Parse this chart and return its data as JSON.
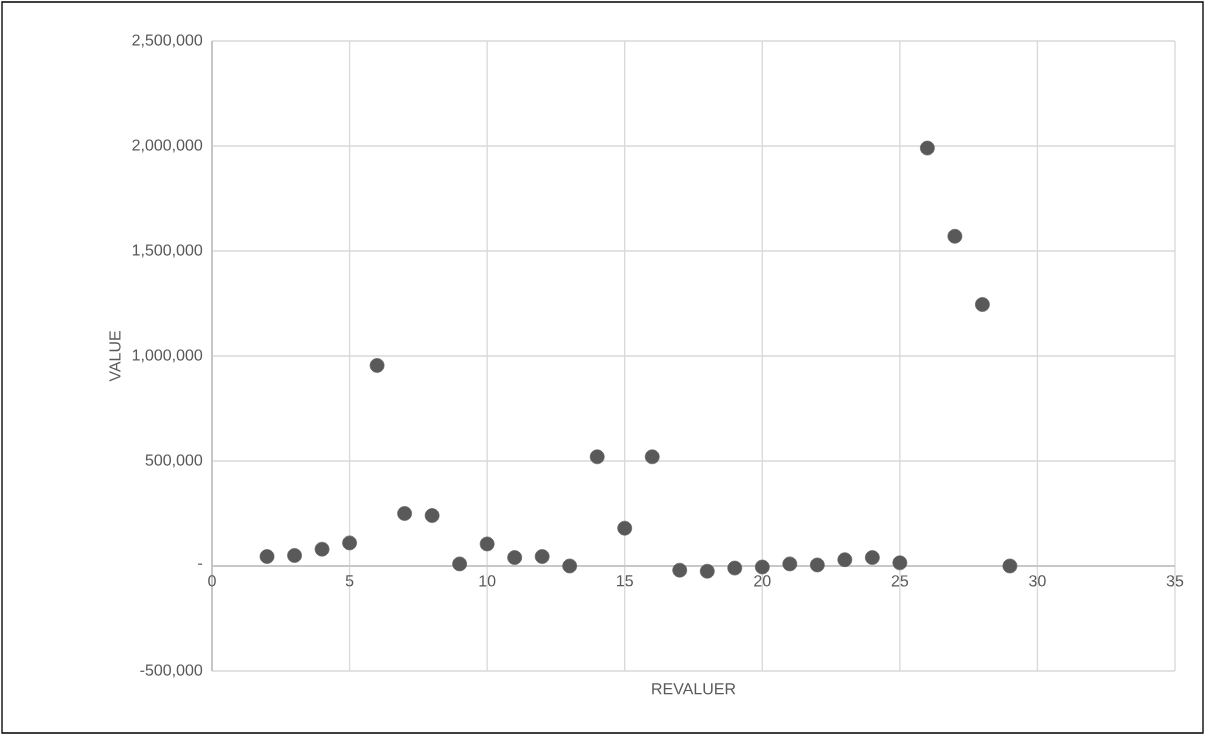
{
  "chart_data": {
    "type": "scatter",
    "xlabel": "REVALUER",
    "ylabel": "VALUE",
    "x": [
      2,
      3,
      4,
      5,
      6,
      7,
      8,
      9,
      10,
      11,
      12,
      13,
      14,
      15,
      16,
      17,
      18,
      19,
      20,
      21,
      22,
      23,
      24,
      25,
      26,
      27,
      28,
      29
    ],
    "values": [
      45000,
      50000,
      80000,
      110000,
      955000,
      250000,
      240000,
      10000,
      105000,
      40000,
      45000,
      0,
      520000,
      180000,
      520000,
      -20000,
      -25000,
      -10000,
      -5000,
      10000,
      5000,
      30000,
      40000,
      15000,
      1990000,
      1570000,
      1245000,
      0
    ],
    "color": "#595959",
    "marker": "circle",
    "grid": true,
    "xlim": [
      0,
      35
    ],
    "xticks": [
      0,
      5,
      10,
      15,
      20,
      25,
      30,
      35
    ],
    "ylim": [
      -500000,
      2500000
    ],
    "yticks": [
      {
        "value": -500000,
        "label": "-500,000"
      },
      {
        "value": 0,
        "label": "-"
      },
      {
        "value": 500000,
        "label": "500,000"
      },
      {
        "value": 1000000,
        "label": "1,000,000"
      },
      {
        "value": 1500000,
        "label": "1,500,000"
      },
      {
        "value": 2000000,
        "label": "2,000,000"
      },
      {
        "value": 2500000,
        "label": "2,500,000"
      }
    ]
  }
}
